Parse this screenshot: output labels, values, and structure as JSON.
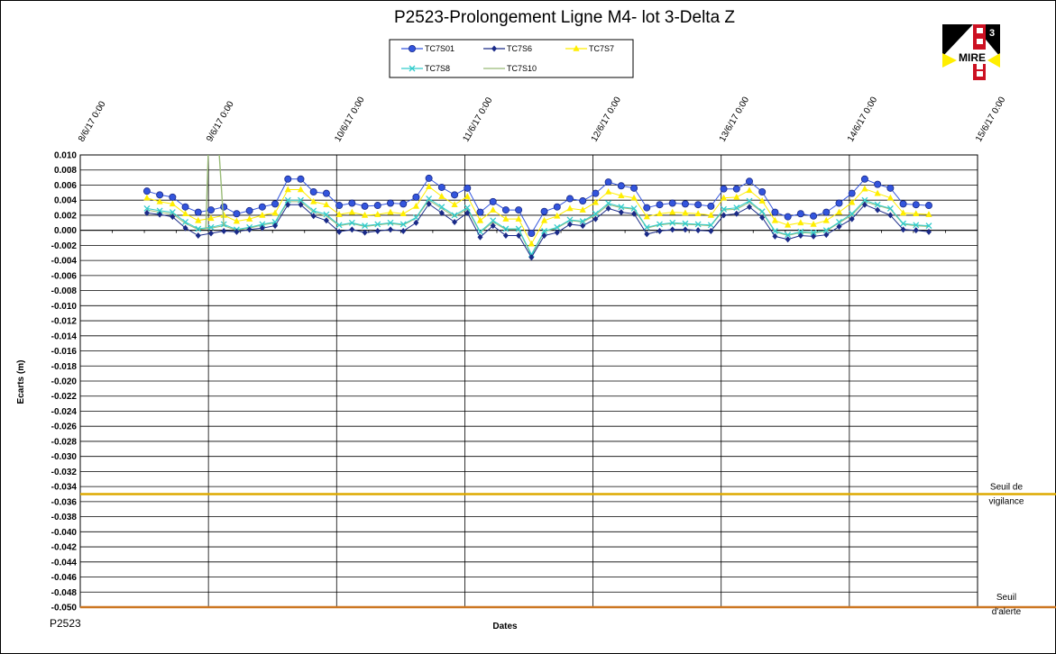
{
  "chart_data": {
    "type": "line",
    "title": "P2523-Prolongement  Ligne  M4- lot 3-Delta Z",
    "xlabel": "Dates",
    "ylabel": "Ecarts (m)",
    "ylim": [
      -0.05,
      0.01
    ],
    "y_step": 0.002,
    "xlim": [
      "8/6/17 0:00",
      "15/6/17 0:00"
    ],
    "x_tick_labels": [
      "8/6/17 0:00",
      "9/6/17 0:00",
      "10/6/17 0:00",
      "11/6/17 0:00",
      "12/6/17 0:00",
      "13/6/17 0:00",
      "14/6/17 0:00",
      "15/6/17 0:00"
    ],
    "grid": true,
    "legend_position": "top-center",
    "footnote": "P2523",
    "x": [
      0.52,
      0.62,
      0.72,
      0.82,
      0.92,
      1.02,
      1.12,
      1.22,
      1.32,
      1.42,
      1.52,
      1.62,
      1.72,
      1.82,
      1.92,
      2.02,
      2.12,
      2.22,
      2.32,
      2.42,
      2.52,
      2.62,
      2.72,
      2.82,
      2.92,
      3.02,
      3.12,
      3.22,
      3.32,
      3.42,
      3.52,
      3.62,
      3.72,
      3.82,
      3.92,
      4.02,
      4.12,
      4.22,
      4.32,
      4.42,
      4.52,
      4.62,
      4.72,
      4.82,
      4.92,
      5.02,
      5.12,
      5.22,
      5.32,
      5.42,
      5.52,
      5.62,
      5.72,
      5.82,
      5.92,
      6.02,
      6.12,
      6.22,
      6.32,
      6.42,
      6.52,
      6.62
    ],
    "series": [
      {
        "name": "TC7S01",
        "color": "#3355dd",
        "marker": "circle",
        "values": [
          0.0052,
          0.0047,
          0.0044,
          0.0031,
          0.0024,
          0.0027,
          0.0031,
          0.0022,
          0.0026,
          0.0031,
          0.0035,
          0.0068,
          0.0068,
          0.0051,
          0.0049,
          0.0033,
          0.0036,
          0.0032,
          0.0033,
          0.0036,
          0.0035,
          0.0044,
          0.0069,
          0.0057,
          0.0047,
          0.0056,
          0.0024,
          0.0038,
          0.0027,
          0.0027,
          -0.0004,
          0.0025,
          0.0031,
          0.0042,
          0.0039,
          0.0049,
          0.0064,
          0.0059,
          0.0056,
          0.003,
          0.0034,
          0.0036,
          0.0035,
          0.0034,
          0.0032,
          0.0055,
          0.0055,
          0.0065,
          0.0051,
          0.0024,
          0.0018,
          0.0022,
          0.0019,
          0.0024,
          0.0036,
          0.0049,
          0.0068,
          0.0061,
          0.0056,
          0.0035,
          0.0034,
          0.0033
        ]
      },
      {
        "name": "TC7S6",
        "color": "#1a2a88",
        "marker": "diamond",
        "values": [
          0.0023,
          0.0021,
          0.0018,
          0.0003,
          -0.0007,
          -0.0004,
          -0.0001,
          -0.0002,
          0.0001,
          0.0003,
          0.0006,
          0.0034,
          0.0034,
          0.0019,
          0.0013,
          -0.0002,
          0.0001,
          -0.0003,
          -0.0001,
          0.0001,
          -0.0001,
          0.001,
          0.0035,
          0.0023,
          0.0011,
          0.0023,
          -0.0009,
          0.0006,
          -0.0007,
          -0.0007,
          -0.0036,
          -0.0007,
          -0.0003,
          0.0008,
          0.0006,
          0.0015,
          0.0029,
          0.0024,
          0.0022,
          -0.0005,
          -0.0001,
          0.0001,
          0.0001,
          0.0,
          -0.0001,
          0.002,
          0.0022,
          0.0031,
          0.0017,
          -0.0008,
          -0.0012,
          -0.0007,
          -0.0008,
          -0.0006,
          0.0005,
          0.0015,
          0.0034,
          0.0027,
          0.002,
          0.0001,
          0.0,
          -0.0002
        ]
      },
      {
        "name": "TC7S7",
        "color": "#ffee00",
        "marker": "triangle",
        "values": [
          0.0043,
          0.0038,
          0.0035,
          0.0022,
          0.0013,
          0.0016,
          0.002,
          0.0012,
          0.0015,
          0.002,
          0.0023,
          0.0054,
          0.0054,
          0.0038,
          0.0034,
          0.0021,
          0.0024,
          0.002,
          0.0021,
          0.0024,
          0.0022,
          0.0032,
          0.0058,
          0.0045,
          0.0034,
          0.0045,
          0.0013,
          0.0027,
          0.0015,
          0.0015,
          -0.0018,
          0.0013,
          0.0019,
          0.0029,
          0.0027,
          0.0037,
          0.0051,
          0.0046,
          0.0043,
          0.0018,
          0.0022,
          0.0024,
          0.0023,
          0.0022,
          0.002,
          0.0043,
          0.0044,
          0.0053,
          0.0039,
          0.0013,
          0.0007,
          0.001,
          0.0008,
          0.0013,
          0.0024,
          0.0037,
          0.0055,
          0.0049,
          0.0043,
          0.0023,
          0.0022,
          0.0021
        ]
      },
      {
        "name": "TC7S8",
        "color": "#33cccc",
        "marker": "x",
        "values": [
          0.0029,
          0.0026,
          0.0024,
          0.0011,
          0.0002,
          0.0004,
          0.0008,
          0.0001,
          0.0004,
          0.0008,
          0.0011,
          0.004,
          0.004,
          0.0026,
          0.0021,
          0.0007,
          0.001,
          0.0006,
          0.0008,
          0.001,
          0.0008,
          0.0017,
          0.0042,
          0.0031,
          0.002,
          0.003,
          -0.0002,
          0.0013,
          0.0002,
          0.0002,
          -0.0032,
          -0.0001,
          0.0004,
          0.0014,
          0.0012,
          0.0022,
          0.0036,
          0.0031,
          0.0029,
          0.0004,
          0.0008,
          0.001,
          0.0009,
          0.0008,
          0.0007,
          0.0028,
          0.003,
          0.0039,
          0.0025,
          -0.0001,
          -0.0006,
          -0.0002,
          -0.0003,
          0.0,
          0.0011,
          0.0022,
          0.004,
          0.0034,
          0.0029,
          0.0009,
          0.0007,
          0.0006
        ]
      },
      {
        "name": "TC7S10",
        "color": "#99bb77",
        "marker": "none",
        "values": [
          0.0027,
          0.0024,
          0.0022,
          0.0009,
          0.0001,
          0.0003,
          0.0006,
          0.0,
          0.0003,
          0.0007,
          0.001,
          0.0038,
          0.0038,
          0.0024,
          0.0019,
          0.0006,
          0.0009,
          0.0005,
          0.0007,
          0.0009,
          0.0007,
          0.0016,
          0.004,
          0.0029,
          0.0018,
          0.0028,
          -0.0003,
          0.0011,
          0.0001,
          0.0001,
          -0.0034,
          -0.0002,
          0.0003,
          0.0013,
          0.0011,
          0.002,
          0.0034,
          0.003,
          0.0028,
          0.0003,
          0.0007,
          0.0009,
          0.0008,
          0.0007,
          0.0006,
          0.0027,
          0.0028,
          0.0037,
          0.0024,
          -0.0002,
          -0.0007,
          -0.0003,
          -0.0004,
          -0.0001,
          0.001,
          0.002,
          0.0038,
          0.0033,
          0.0028,
          0.0008,
          0.0006,
          0.0005
        ]
      }
    ],
    "thresholds": [
      {
        "label_line1": "Seuil de",
        "label_line2": "vigilance",
        "value": -0.035,
        "color": "#ddaa00"
      },
      {
        "label_line1": "Seuil",
        "label_line2": "d'alerte",
        "value": -0.05,
        "color": "#cc7722"
      }
    ]
  },
  "logo": {
    "text": "MIRE",
    "digit": "3",
    "name": "mire-logo"
  }
}
